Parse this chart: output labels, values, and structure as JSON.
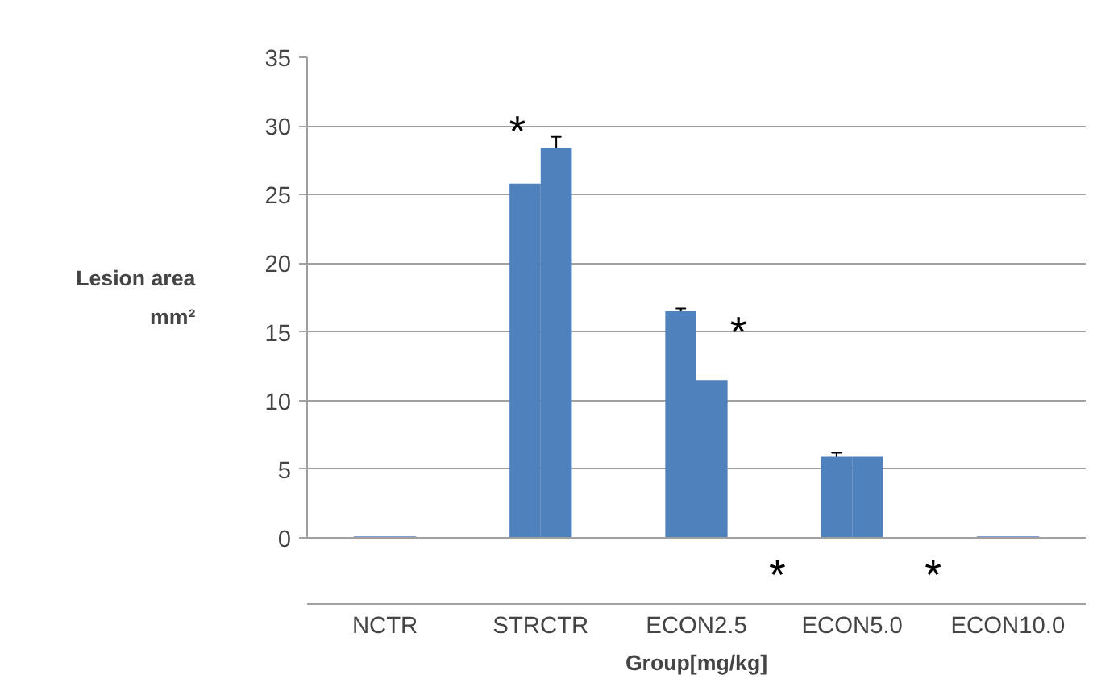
{
  "chart_data": {
    "type": "bar",
    "xlabel": "Group[mg/kg]",
    "ylabel": "Lesion area\nmm²",
    "categories": [
      "NCTR",
      "STRCTR",
      "ECON2.5",
      "ECON5.0",
      "ECON10.0"
    ],
    "series": [
      {
        "color": "#4f81bd",
        "values": [
          0.1,
          25.8,
          16.5,
          5.9,
          0.1
        ],
        "errors": [
          null,
          null,
          0.2,
          0.3,
          null
        ]
      },
      {
        "color": "#4f81bd",
        "values": [
          0.1,
          28.4,
          11.5,
          5.9,
          0.1
        ],
        "errors": [
          null,
          0.8,
          null,
          null,
          null
        ]
      }
    ],
    "ylim": [
      0,
      35
    ],
    "yticks": [
      0,
      5,
      10,
      15,
      20,
      25,
      30,
      35
    ],
    "grid": "y",
    "annotations": [
      "*",
      "*",
      "*",
      "*"
    ]
  }
}
